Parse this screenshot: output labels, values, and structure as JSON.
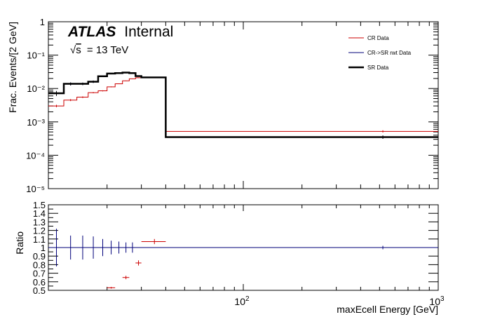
{
  "atlas_label": {
    "experiment": "ATLAS",
    "status": "Internal",
    "energy_sqrt": "s",
    "energy_value": "= 13 TeV"
  },
  "legend": [
    {
      "label": "CR Data",
      "color": "#cc0000",
      "width": 1
    },
    {
      "label": "CR->SR rwt Data",
      "color": "#00007a",
      "width": 1
    },
    {
      "label": "SR Data",
      "color": "#000000",
      "width": 2.5
    }
  ],
  "chart_data": [
    {
      "type": "line",
      "role": "main",
      "ylabel": "Frac. Events/[2 GeV]",
      "xscale": "log",
      "yscale": "log",
      "xlim": [
        10,
        1000
      ],
      "ylim": [
        1e-05,
        1
      ],
      "yticks": [
        {
          "value": 1e-05,
          "label": "10⁻⁵"
        },
        {
          "value": 0.0001,
          "label": "10⁻⁴"
        },
        {
          "value": 0.001,
          "label": "10⁻³"
        },
        {
          "value": 0.01,
          "label": "10⁻²"
        },
        {
          "value": 0.1,
          "label": "10⁻¹"
        },
        {
          "value": 1,
          "label": "1"
        }
      ],
      "bin_edges": [
        10,
        12,
        14,
        16,
        18,
        20,
        22,
        24,
        26,
        28,
        30,
        40,
        1000
      ],
      "series": [
        {
          "name": "CR Data",
          "color": "#cc0000",
          "values": [
            0.003,
            0.0045,
            0.0055,
            0.0075,
            0.0085,
            0.0112,
            0.0138,
            0.017,
            0.0195,
            0.021,
            0.0215,
            0.00052
          ],
          "errors": [
            0.00025,
            0.0003,
            0.0003,
            0.0003,
            0.0003,
            0.0003,
            0.0003,
            0.0003,
            0.0003,
            0.0003,
            0.0003,
            4e-05
          ]
        },
        {
          "name": "CR->SR rwt Data",
          "color": "#00007a",
          "values": [
            0.0072,
            0.0138,
            0.0138,
            0.016,
            0.0232,
            0.028,
            0.029,
            0.03,
            0.029,
            0.0235,
            0.0215,
            0.00035
          ],
          "errors": [
            0.0012,
            0.0014,
            0.0012,
            0.0013,
            0.0012,
            0.0011,
            0.001,
            0.001,
            0.001,
            0.0009,
            0.0008,
            4e-05
          ]
        },
        {
          "name": "SR Data",
          "color": "#000000",
          "values": [
            0.0072,
            0.0138,
            0.0138,
            0.016,
            0.0232,
            0.028,
            0.029,
            0.03,
            0.029,
            0.0235,
            0.0215,
            0.00035
          ],
          "errors": [
            0.0012,
            0.0014,
            0.0012,
            0.0013,
            0.0012,
            0.0011,
            0.001,
            0.001,
            0.001,
            0.0009,
            0.0008,
            4e-05
          ]
        }
      ]
    },
    {
      "type": "scatter",
      "role": "ratio",
      "xlabel": "maxEcell Energy [GeV]",
      "ylabel": "Ratio",
      "xscale": "log",
      "xlim": [
        10,
        1000
      ],
      "ylim": [
        0.5,
        1.5
      ],
      "yticks": [
        0.5,
        0.6,
        0.7,
        0.8,
        0.9,
        1,
        1.1,
        1.2,
        1.3,
        1.4,
        1.5
      ],
      "ytick_labels": [
        "0.5",
        "0.6",
        "0.7",
        "0.8",
        "0.9",
        "1",
        "1.1",
        "1.2",
        "1.3",
        "1.4",
        "1.5"
      ],
      "xtick_labels": [
        {
          "value": 100,
          "base": "10",
          "exp": "2"
        },
        {
          "value": 1000,
          "base": "10",
          "exp": "3"
        }
      ],
      "reference_line": 1,
      "series": [
        {
          "name": "CR->SR rwt Data",
          "color": "#00007a",
          "points": [
            {
              "x": 11,
              "y": 1.0,
              "err": 0.22,
              "xerr": 1
            },
            {
              "x": 13,
              "y": 1.0,
              "err": 0.14,
              "xerr": 0
            },
            {
              "x": 15,
              "y": 1.0,
              "err": 0.14,
              "xerr": 0
            },
            {
              "x": 17,
              "y": 1.0,
              "err": 0.13,
              "xerr": 0
            },
            {
              "x": 19,
              "y": 1.0,
              "err": 0.1,
              "xerr": 0
            },
            {
              "x": 21,
              "y": 1.0,
              "err": 0.08,
              "xerr": 0
            },
            {
              "x": 23,
              "y": 1.0,
              "err": 0.07,
              "xerr": 0
            },
            {
              "x": 25,
              "y": 1.0,
              "err": 0.06,
              "xerr": 0
            },
            {
              "x": 27,
              "y": 1.0,
              "err": 0.06,
              "xerr": 0
            },
            {
              "x": 520,
              "y": 1.0,
              "err": 0.02,
              "xerr": 0
            }
          ]
        },
        {
          "name": "CR Data",
          "color": "#cc0000",
          "points": [
            {
              "x": 21,
              "y": 0.53,
              "err": 0.01,
              "xerr": 1
            },
            {
              "x": 25,
              "y": 0.65,
              "err": 0.02,
              "xerr": 1
            },
            {
              "x": 29,
              "y": 0.82,
              "err": 0.03,
              "xerr": 1
            },
            {
              "x": 35,
              "y": 1.07,
              "err": 0.03,
              "xerr": 5
            }
          ]
        }
      ]
    }
  ]
}
